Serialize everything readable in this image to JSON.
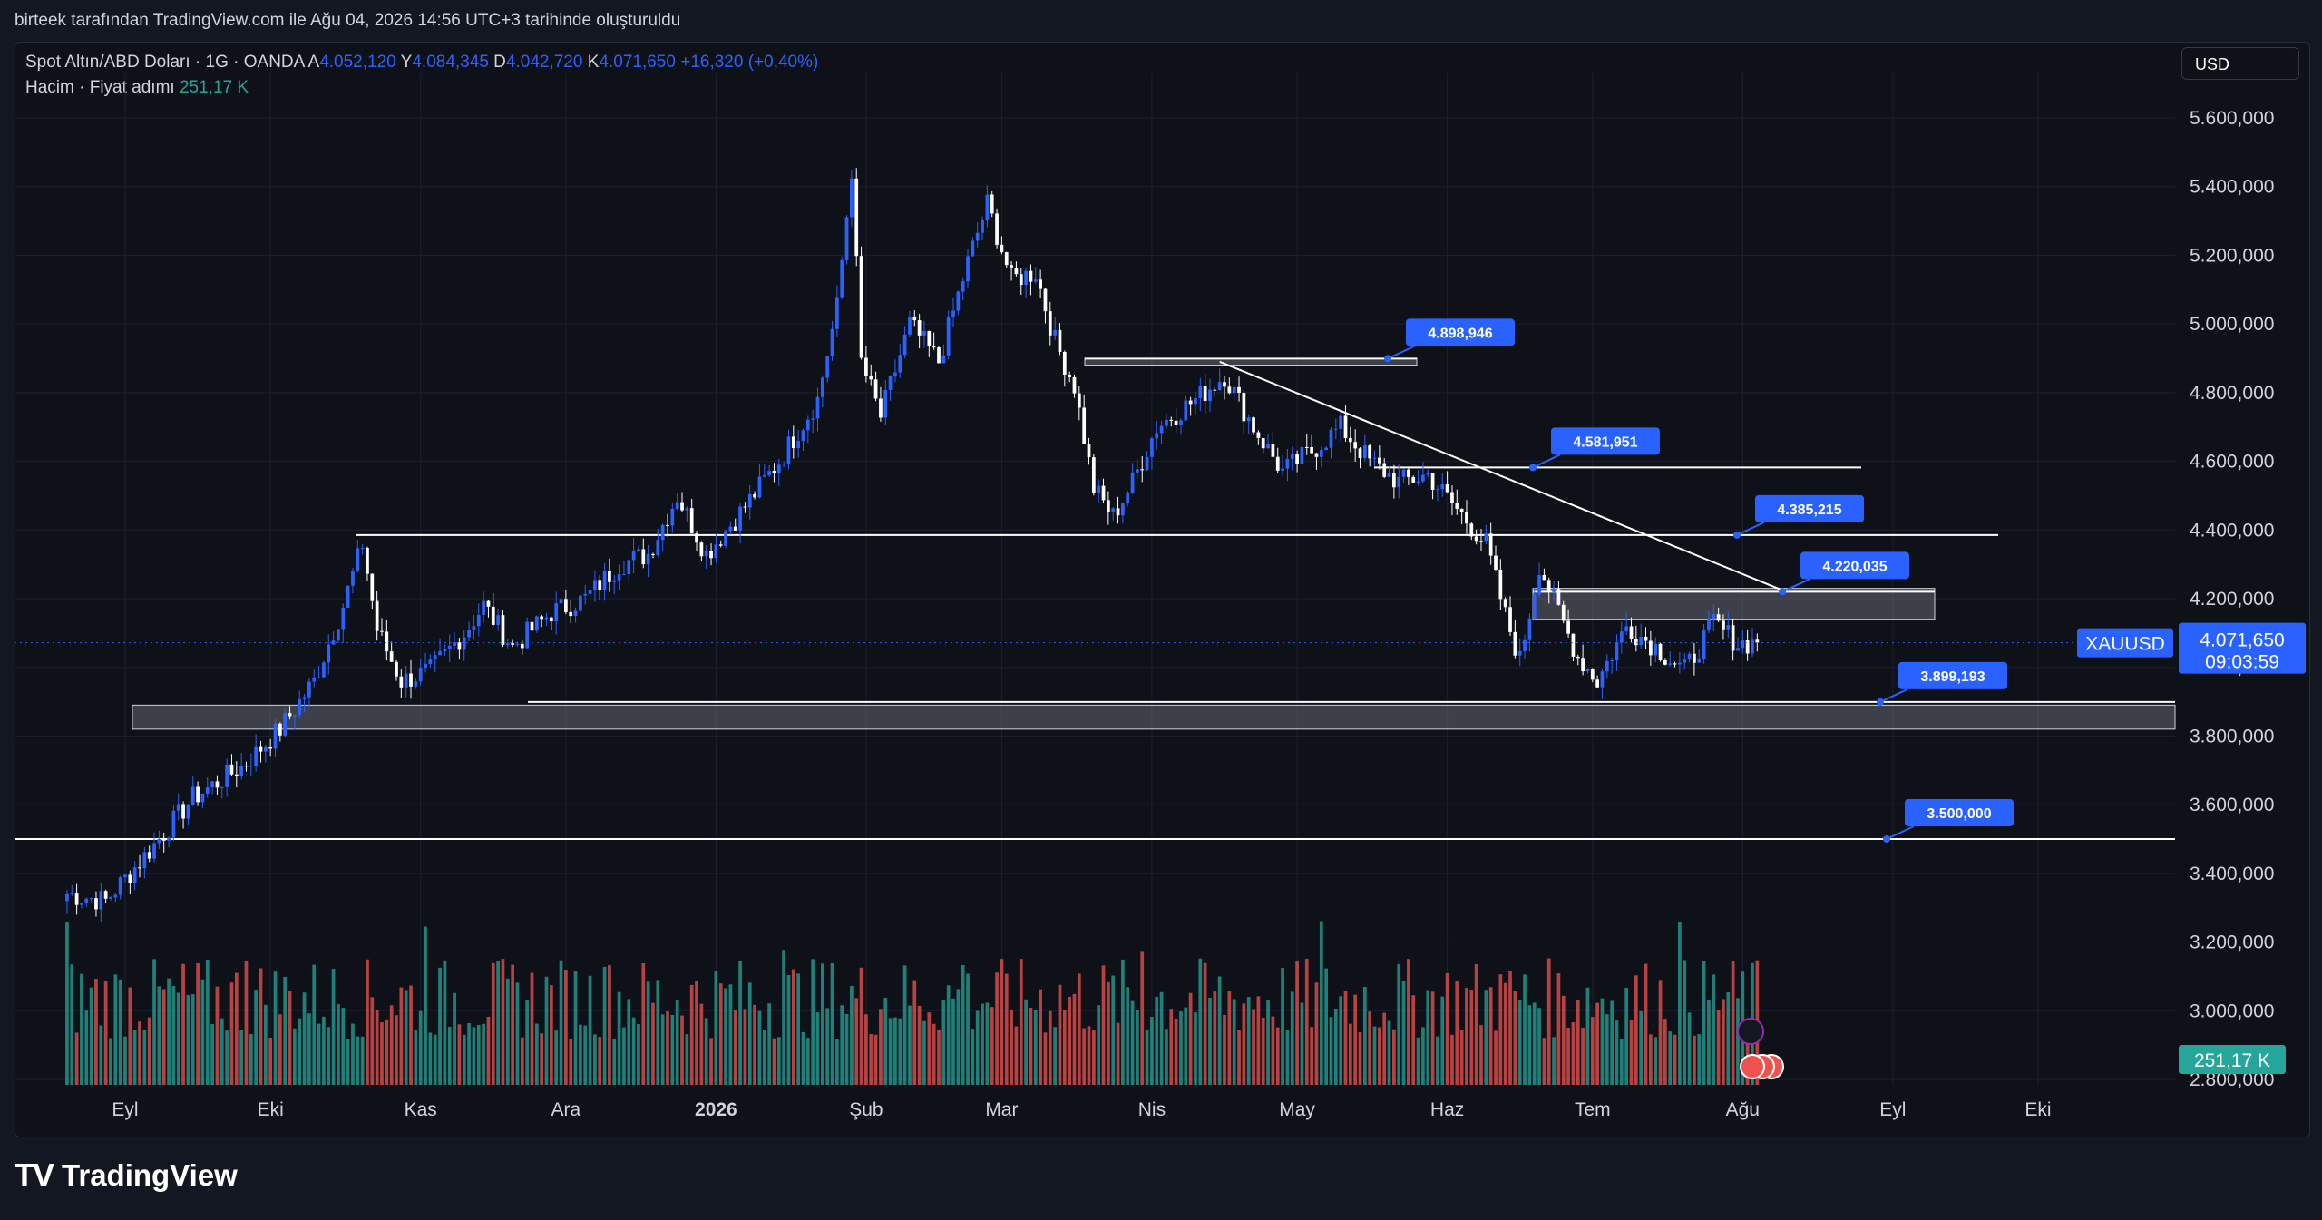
{
  "header": {
    "caption": "birteek tarafından TradingView.com ile Ağu 04, 2026 14:56 UTC+3 tarihinde oluşturuldu"
  },
  "legend": {
    "symbol": "Spot Altın/ABD Doları · 1G · OANDA",
    "o_label": "A",
    "o_value": "4.052,120",
    "h_label": "Y",
    "h_value": "4.084,345",
    "l_label": "D",
    "l_value": "4.042,720",
    "c_label": "K",
    "c_value": "4.071,650",
    "change": "+16,320 (+0,40%)",
    "volume_label": "Hacim · Fiyat adımı",
    "volume_value": "251,17 K"
  },
  "currency": "USD",
  "price_label": {
    "symbol": "XAUUSD",
    "price": "4.071,650",
    "countdown": "09:03:59"
  },
  "volume_label": "251,17 K",
  "brand": "TradingView",
  "colors": {
    "up": "#2962ff",
    "down": "#ffffff",
    "vol_up": "#26a69a",
    "vol_down": "#ef5350",
    "accent": "#2962ff",
    "bg": "#0f1118"
  },
  "chart_data": {
    "type": "candlestick",
    "symbol": "XAUUSD",
    "ylim": [
      2800000,
      5700000
    ],
    "y_ticks": [
      "5.600,000",
      "5.400,000",
      "5.200,000",
      "5.000,000",
      "4.800,000",
      "4.600,000",
      "4.400,000",
      "4.200,000",
      "4.000,000",
      "3.800,000",
      "3.600,000",
      "3.400,000",
      "3.200,000",
      "3.000,000",
      "2.800,000"
    ],
    "y_tick_values": [
      5600000,
      5400000,
      5200000,
      5000000,
      4800000,
      4600000,
      4400000,
      4200000,
      4000000,
      3800000,
      3600000,
      3400000,
      3200000,
      3000000,
      2800000
    ],
    "x_ticks": [
      "Eyl",
      "Eki",
      "Kas",
      "Ara",
      "2026",
      "Şub",
      "Mar",
      "Nis",
      "May",
      "Haz",
      "Tem",
      "Ağu",
      "Eyl",
      "Eki"
    ],
    "x_tick_dates": [
      "2025-09-01",
      "2025-10-01",
      "2025-11-01",
      "2025-12-01",
      "2026-01-01",
      "2026-02-01",
      "2026-03-01",
      "2026-04-01",
      "2026-05-01",
      "2026-06-01",
      "2026-07-01",
      "2026-08-01",
      "2026-09-01",
      "2026-10-01"
    ],
    "close_path": [
      [
        "2025-08-20",
        3340000
      ],
      [
        "2025-08-28",
        3320000
      ],
      [
        "2025-09-05",
        3450000
      ],
      [
        "2025-09-15",
        3620000
      ],
      [
        "2025-09-25",
        3710000
      ],
      [
        "2025-10-03",
        3820000
      ],
      [
        "2025-10-10",
        3960000
      ],
      [
        "2025-10-16",
        4180000
      ],
      [
        "2025-10-20",
        4360000
      ],
      [
        "2025-10-23",
        4110000
      ],
      [
        "2025-10-28",
        3960000
      ],
      [
        "2025-11-03",
        3990000
      ],
      [
        "2025-11-10",
        4100000
      ],
      [
        "2025-11-14",
        4180000
      ],
      [
        "2025-11-20",
        4060000
      ],
      [
        "2025-11-28",
        4160000
      ],
      [
        "2025-12-05",
        4200000
      ],
      [
        "2025-12-12",
        4300000
      ],
      [
        "2025-12-18",
        4330000
      ],
      [
        "2025-12-24",
        4500000
      ],
      [
        "2025-12-30",
        4330000
      ],
      [
        "2026-01-06",
        4450000
      ],
      [
        "2026-01-14",
        4600000
      ],
      [
        "2026-01-22",
        4780000
      ],
      [
        "2026-01-26",
        5050000
      ],
      [
        "2026-01-29",
        5450000
      ],
      [
        "2026-01-31",
        4890000
      ],
      [
        "2026-02-04",
        4730000
      ],
      [
        "2026-02-10",
        5000000
      ],
      [
        "2026-02-16",
        4890000
      ],
      [
        "2026-02-22",
        5180000
      ],
      [
        "2026-02-26",
        5350000
      ],
      [
        "2026-03-03",
        5130000
      ],
      [
        "2026-03-08",
        5150000
      ],
      [
        "2026-03-12",
        4950000
      ],
      [
        "2026-03-16",
        4820000
      ],
      [
        "2026-03-20",
        4520000
      ],
      [
        "2026-03-24",
        4440000
      ],
      [
        "2026-03-28",
        4540000
      ],
      [
        "2026-04-02",
        4700000
      ],
      [
        "2026-04-10",
        4780000
      ],
      [
        "2026-04-16",
        4850000
      ],
      [
        "2026-04-22",
        4700000
      ],
      [
        "2026-04-28",
        4570000
      ],
      [
        "2026-05-04",
        4630000
      ],
      [
        "2026-05-10",
        4700000
      ],
      [
        "2026-05-16",
        4600000
      ],
      [
        "2026-05-22",
        4540000
      ],
      [
        "2026-05-28",
        4560000
      ],
      [
        "2026-06-03",
        4460000
      ],
      [
        "2026-06-09",
        4360000
      ],
      [
        "2026-06-13",
        4150000
      ],
      [
        "2026-06-16",
        4020000
      ],
      [
        "2026-06-20",
        4300000
      ],
      [
        "2026-06-24",
        4160000
      ],
      [
        "2026-06-28",
        4030000
      ],
      [
        "2026-07-02",
        3960000
      ],
      [
        "2026-07-08",
        4120000
      ],
      [
        "2026-07-14",
        4060000
      ],
      [
        "2026-07-20",
        3990000
      ],
      [
        "2026-07-26",
        4130000
      ],
      [
        "2026-07-31",
        4070000
      ],
      [
        "2026-08-04",
        4071650
      ]
    ],
    "levels": [
      {
        "label": "4.898,946",
        "price": 4898946
      },
      {
        "label": "4.581,951",
        "price": 4581951
      },
      {
        "label": "4.385,215",
        "price": 4385215
      },
      {
        "label": "4.220,035",
        "price": 4220035
      },
      {
        "label": "3.899,193",
        "price": 3899193
      },
      {
        "label": "3.500,000",
        "price": 3500000
      }
    ],
    "zones": [
      {
        "from": 3820000,
        "to": 3890000
      },
      {
        "from": 4140000,
        "to": 4230000
      },
      {
        "from": 4880000,
        "to": 4900000
      }
    ],
    "trendline": {
      "from": [
        "2026-04-15",
        4890000
      ],
      "to": [
        "2026-08-10",
        4220000
      ]
    },
    "last_price": 4071650
  }
}
